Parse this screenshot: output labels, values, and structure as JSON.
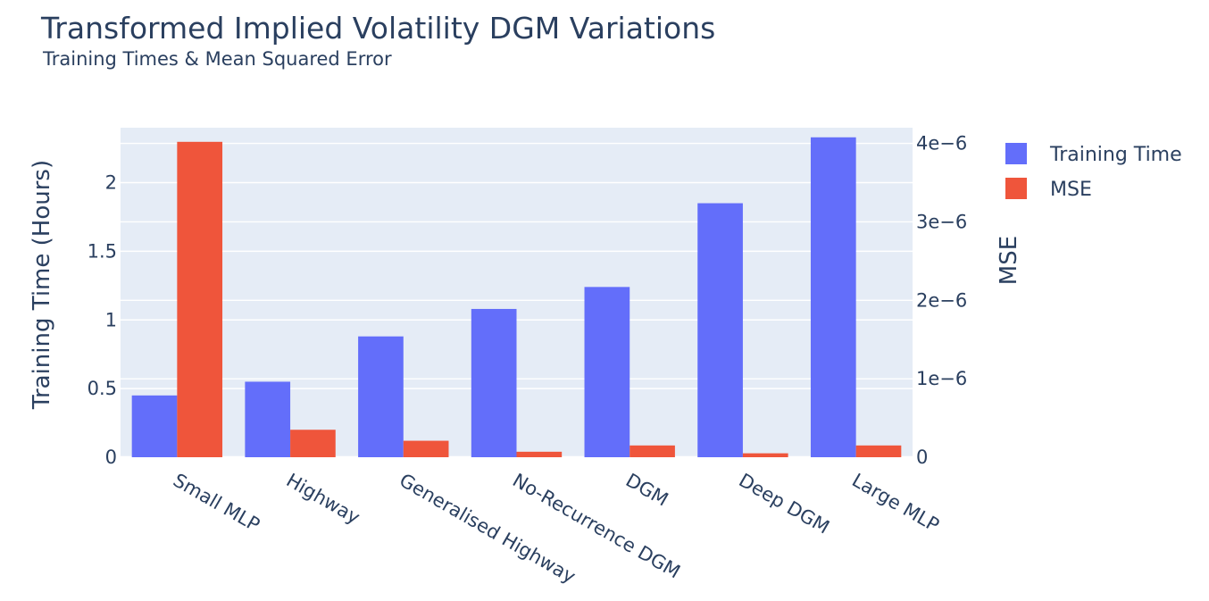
{
  "colors": {
    "training_time": "#636efa",
    "mse": "#ef553b",
    "plot_bg": "#e5ecf6",
    "grid": "#ffffff",
    "text": "#2a3f5f"
  },
  "chart_data": {
    "type": "bar",
    "title": "Transformed Implied Volatility DGM Variations",
    "subtitle": "Training Times & Mean Squared Error",
    "categories": [
      "Small MLP",
      "Highway",
      "Generalised Highway",
      "No-Recurrence DGM",
      "DGM",
      "Deep DGM",
      "Large MLP"
    ],
    "series": [
      {
        "name": "Training Time",
        "axis": "y",
        "values": [
          0.45,
          0.55,
          0.88,
          1.08,
          1.24,
          1.85,
          2.33
        ]
      },
      {
        "name": "MSE",
        "axis": "y2",
        "values": [
          4.02e-06,
          3.5e-07,
          2.1e-07,
          7e-08,
          1.5e-07,
          5e-08,
          1.5e-07
        ]
      }
    ],
    "ylabel": "Training Time (Hours)",
    "y2label": "MSE",
    "ylim": [
      0,
      2.4
    ],
    "y2lim": [
      0,
      4.2e-06
    ],
    "yticks": [
      0,
      0.5,
      1,
      1.5,
      2
    ],
    "ytick_labels": [
      "0",
      "0.5",
      "1",
      "1.5",
      "2"
    ],
    "y2ticks": [
      0,
      1e-06,
      2e-06,
      3e-06,
      4e-06
    ],
    "y2tick_labels": [
      "0",
      "1e−6",
      "2e−6",
      "3e−6",
      "4e−6"
    ],
    "legend": [
      "Training Time",
      "MSE"
    ],
    "legend_position": "top-right",
    "grid": true
  }
}
